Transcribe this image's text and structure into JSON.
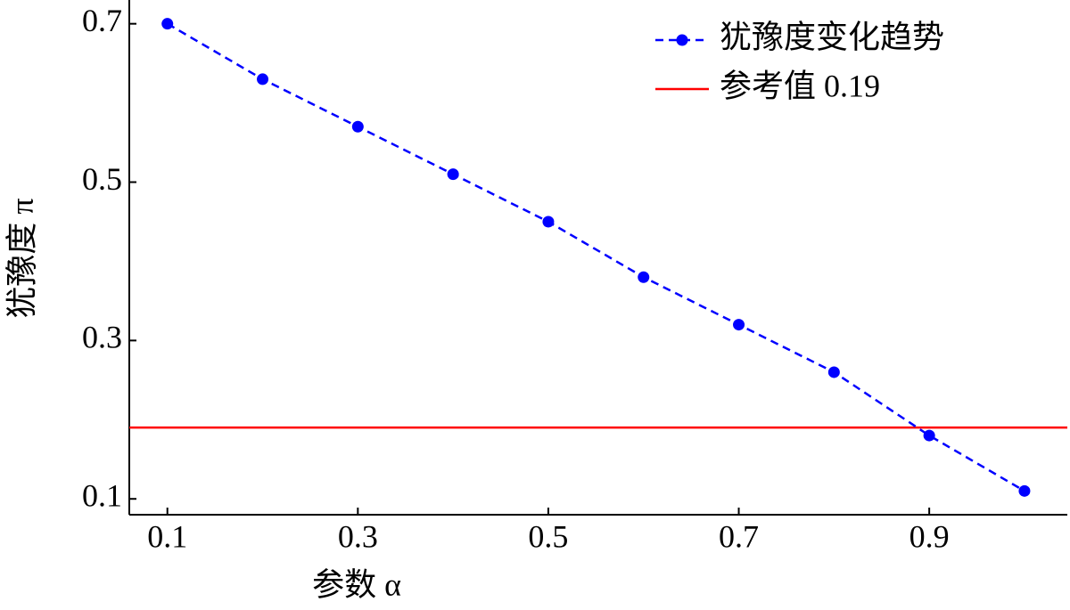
{
  "chart_data": {
    "type": "line",
    "x_label": "参数 α",
    "y_label": "犹豫度 π",
    "x": [
      0.1,
      0.2,
      0.3,
      0.4,
      0.5,
      0.6,
      0.7,
      0.8,
      0.9,
      1.0
    ],
    "series": [
      {
        "name": "犹豫度变化趋势",
        "color": "#0000ff",
        "values": [
          0.7,
          0.63,
          0.57,
          0.51,
          0.45,
          0.38,
          0.32,
          0.26,
          0.18,
          0.11
        ]
      }
    ],
    "reference_line": {
      "name": "参考值 0.19",
      "color": "#ff0000",
      "value": 0.19
    },
    "xlim": [
      0.06,
      1.045
    ],
    "ylim": [
      0.08,
      0.73
    ],
    "xticks": [
      0.1,
      0.3,
      0.5,
      0.7,
      0.9
    ],
    "yticks": [
      0.1,
      0.3,
      0.5,
      0.7
    ],
    "legend": "upper right"
  }
}
